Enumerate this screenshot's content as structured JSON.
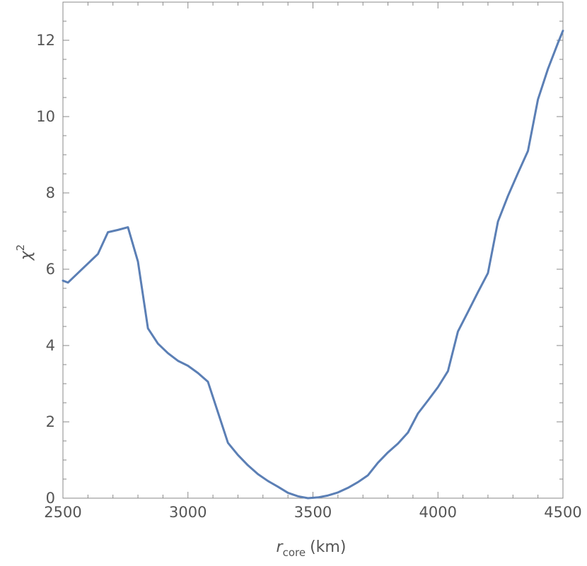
{
  "chart_data": {
    "type": "line",
    "xlabel": {
      "var": "r",
      "sub": "core",
      "unit": "(km)"
    },
    "ylabel": {
      "var": "χ",
      "sup": "2"
    },
    "xlim": [
      2500,
      4500
    ],
    "ylim": [
      0,
      13
    ],
    "x_ticks": [
      2500,
      3000,
      3500,
      4000,
      4500
    ],
    "y_ticks": [
      0,
      2,
      4,
      6,
      8,
      10,
      12
    ],
    "x_tick_labels": [
      "2500",
      "3000",
      "3500",
      "4000",
      "4500"
    ],
    "y_tick_labels": [
      "0",
      "2",
      "4",
      "6",
      "8",
      "10",
      "12"
    ],
    "x_minor_step": 100,
    "y_minor_step": 0.5,
    "grid": false,
    "line_color": "#5b7fb5",
    "series": [
      {
        "x": [
          2500,
          2520,
          2560,
          2600,
          2640,
          2680,
          2720,
          2760,
          2800,
          2840,
          2880,
          2920,
          2960,
          3000,
          3040,
          3080,
          3120,
          3160,
          3200,
          3240,
          3280,
          3320,
          3360,
          3400,
          3440,
          3480,
          3520,
          3560,
          3600,
          3640,
          3680,
          3720,
          3760,
          3800,
          3840,
          3880,
          3920,
          3960,
          4000,
          4040,
          4080,
          4120,
          4160,
          4200,
          4240,
          4280,
          4320,
          4360,
          4400,
          4440,
          4480,
          4500
        ],
        "y": [
          5.7,
          5.65,
          5.9,
          6.15,
          6.4,
          6.97,
          7.03,
          7.1,
          6.2,
          4.45,
          4.05,
          3.8,
          3.6,
          3.47,
          3.28,
          3.05,
          2.25,
          1.45,
          1.13,
          0.86,
          0.63,
          0.45,
          0.3,
          0.14,
          0.05,
          0.0,
          0.02,
          0.07,
          0.15,
          0.27,
          0.42,
          0.6,
          0.93,
          1.2,
          1.43,
          1.72,
          2.22,
          2.56,
          2.91,
          3.33,
          4.37,
          4.88,
          5.4,
          5.9,
          7.25,
          7.92,
          8.52,
          9.1,
          10.45,
          11.25,
          11.93,
          12.25
        ]
      }
    ]
  }
}
